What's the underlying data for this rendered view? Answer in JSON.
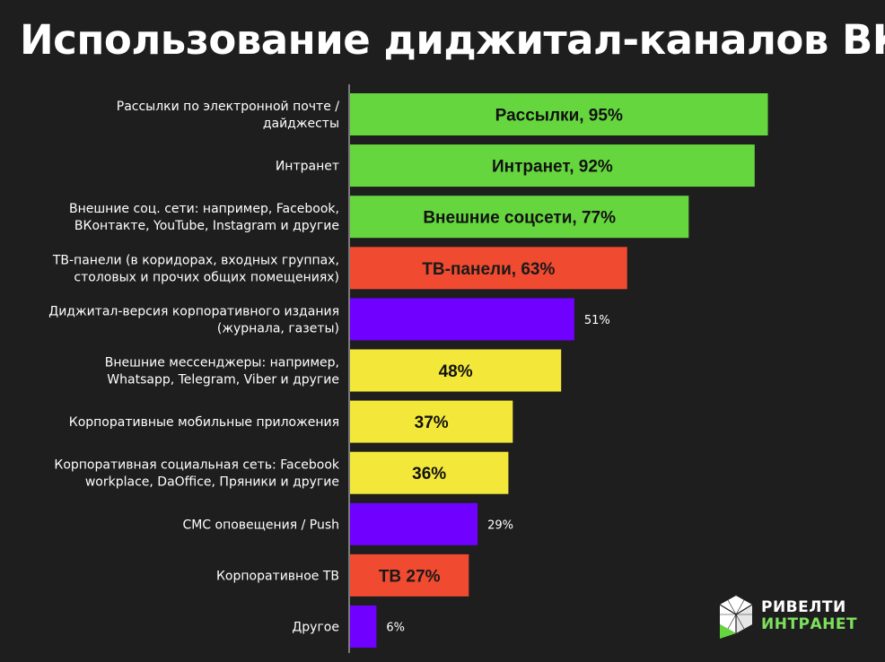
{
  "title": "Использование диджитал-каналов ВК",
  "logo": {
    "line1": "РИВЕЛТИ",
    "line2": "ИНТРАНЕТ"
  },
  "colors": {
    "background": "#1e1e1e",
    "green": "#66d63f",
    "red": "#f04a30",
    "purple": "#7000ff",
    "yellow": "#f3e83a",
    "axis": "#7a7a7a"
  },
  "chart_data": {
    "type": "bar",
    "orientation": "horizontal",
    "xlim": [
      0,
      100
    ],
    "grid": false,
    "categories": [
      [
        "Рассылки по электронной почте /",
        "дайджесты"
      ],
      [
        "Интранет"
      ],
      [
        "Внешние соц. сети: например, Facebook,",
        "ВКонтакте, YouTube, Instagram и другие"
      ],
      [
        "ТВ-панели (в коридорах, входных группах,",
        "столовых и прочих общих помещениях)"
      ],
      [
        "Диджитал-версия корпоративного издания",
        "(журнала, газеты)"
      ],
      [
        "Внешние мессенджеры: например,",
        "Whatsapp, Telegram, Viber и другие"
      ],
      [
        "Корпоративные мобильные приложения"
      ],
      [
        "Корпоративная социальная сеть: Facebook",
        "workplace, DaOffice, Пряники и другие"
      ],
      [
        "СМС оповещения / Push"
      ],
      [
        "Корпоративное ТВ"
      ],
      [
        "Другое"
      ]
    ],
    "values": [
      95,
      92,
      77,
      63,
      51,
      48,
      37,
      36,
      29,
      27,
      6
    ],
    "bar_colors": [
      "green",
      "green",
      "green",
      "red",
      "purple",
      "yellow",
      "yellow",
      "yellow",
      "purple",
      "red",
      "purple"
    ],
    "data_labels": [
      "Рассылки, 95%",
      "Интранет, 92%",
      "Внешние соцсети, 77%",
      "ТВ-панели, 63%",
      "51%",
      "48%",
      "37%",
      "36%",
      "29%",
      "ТВ 27%",
      "6%"
    ],
    "label_inside": [
      true,
      true,
      true,
      true,
      false,
      true,
      true,
      true,
      false,
      true,
      false
    ]
  }
}
